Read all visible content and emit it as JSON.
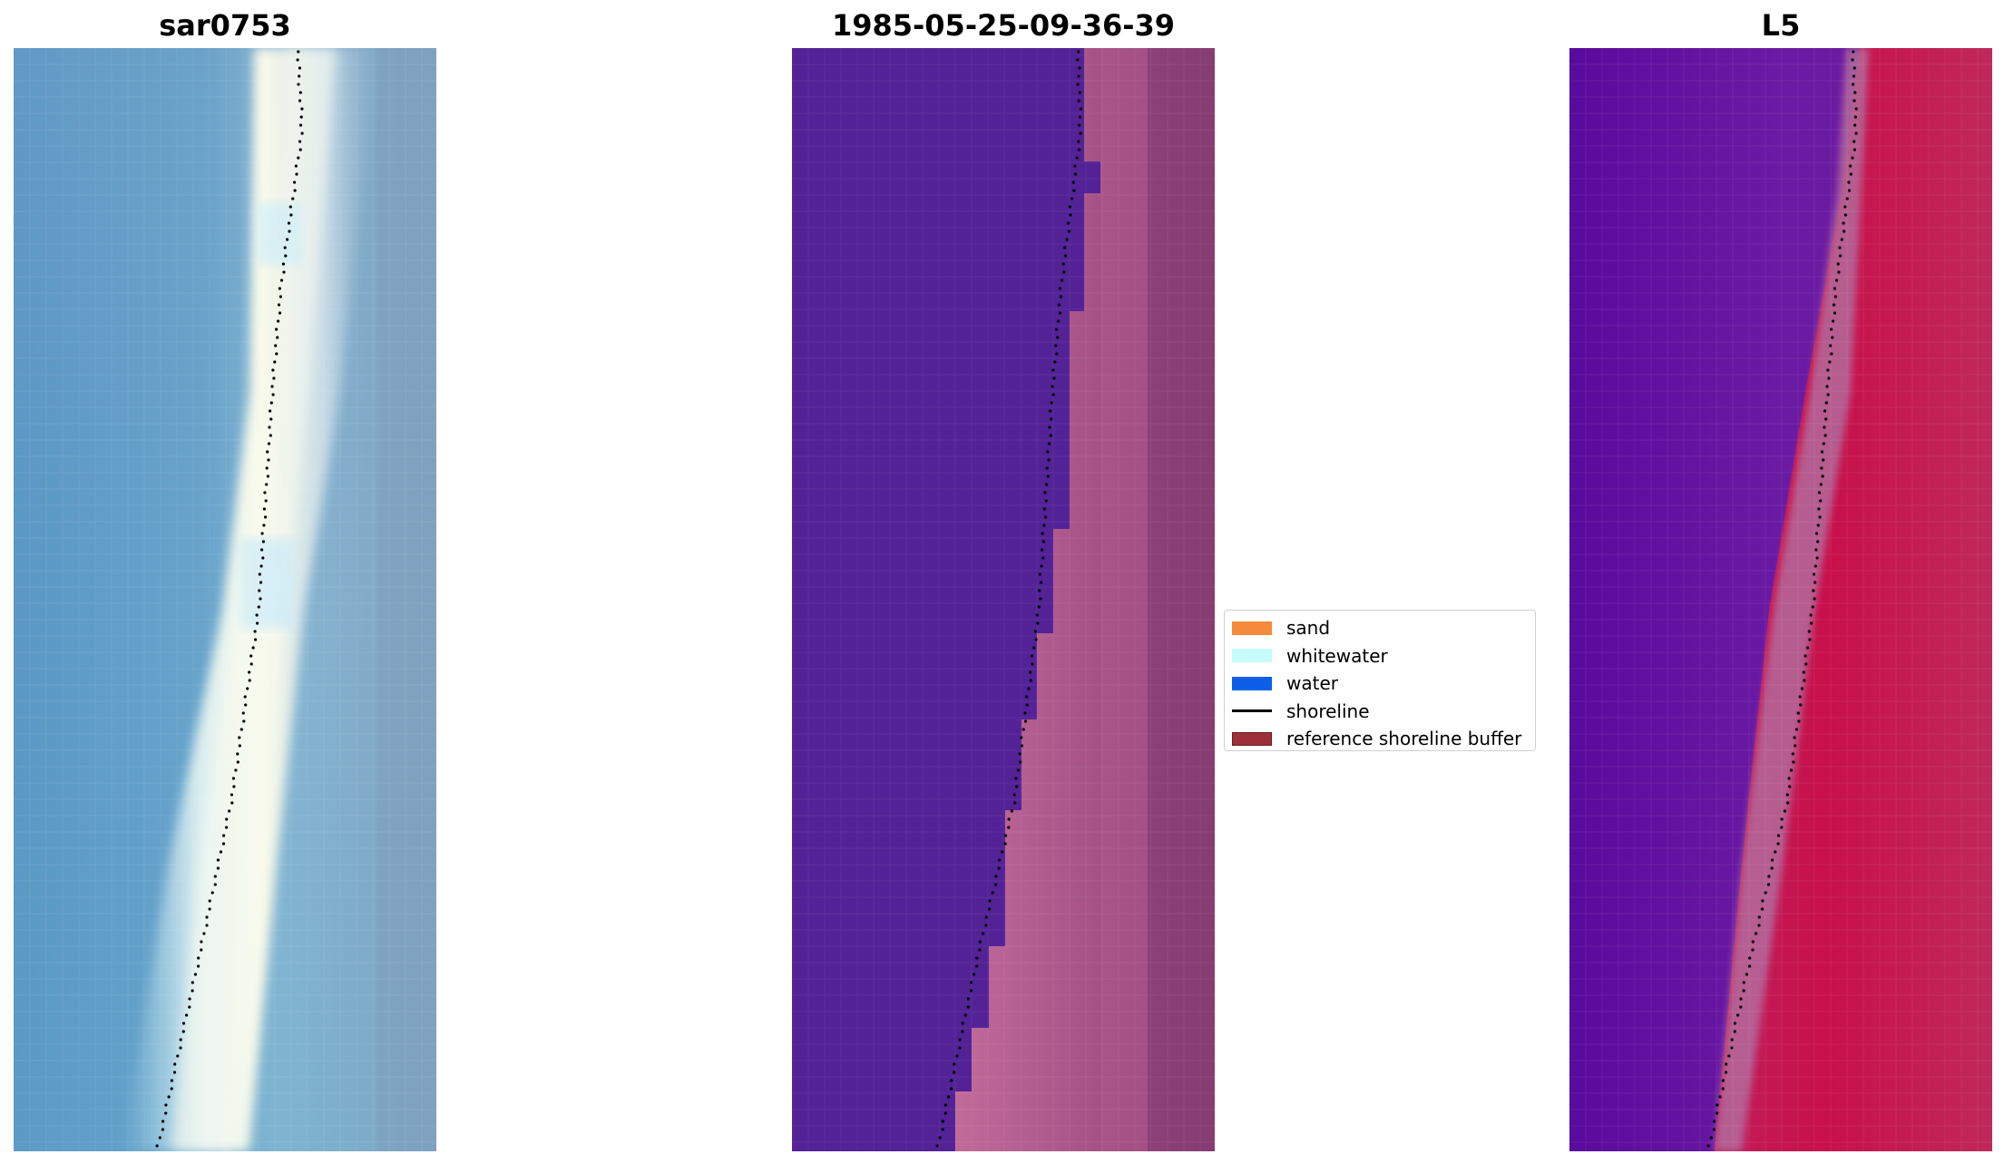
{
  "panels": [
    {
      "title": "sar0753"
    },
    {
      "title": "1985-05-25-09-36-39"
    },
    {
      "title": "L5"
    }
  ],
  "legend": {
    "items": [
      {
        "label": "sand",
        "color": "#f58a3b",
        "kind": "patch"
      },
      {
        "label": "whitewater",
        "color": "#c6fbfb",
        "kind": "patch"
      },
      {
        "label": "water",
        "color": "#0c5fe6",
        "kind": "patch"
      },
      {
        "label": "shoreline",
        "color": "#000000",
        "kind": "line"
      },
      {
        "label": "reference shoreline buffer",
        "color": "#9c2f3a",
        "kind": "patch",
        "edge": "#6b1a22"
      }
    ]
  },
  "colors": {
    "rgb_water": "#5f9bc7",
    "rgb_whitewater": "#f6f9ee",
    "classified_water": "#532296",
    "classified_buffer": "#b86393",
    "mndwi_water": "#5e14a0",
    "mndwi_land": "#c8104a"
  },
  "icons": {
    "shoreline_marker": "dot"
  }
}
